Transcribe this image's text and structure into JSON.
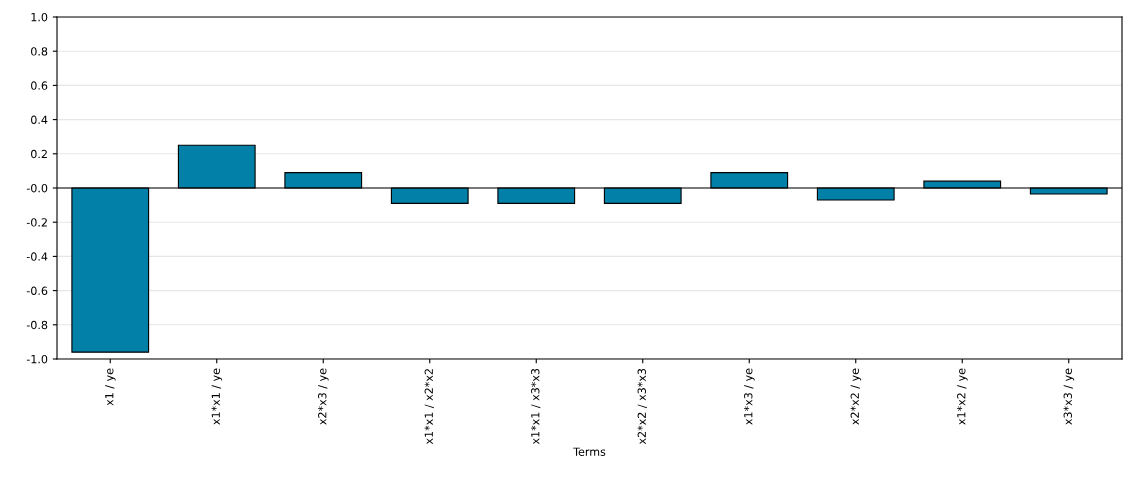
{
  "chart_data": {
    "type": "bar",
    "xlabel": "Terms",
    "categories": [
      "x1 / ye",
      "x1*x1 / ye",
      "x2*x3 / ye",
      "x1*x1 / x2*x2",
      "x1*x1 / x3*x3",
      "x2*x2 / x3*x3",
      "x1*x3 / ye",
      "x2*x2 / ye",
      "x1*x2 / ye",
      "x3*x3 / ye"
    ],
    "values": [
      -0.96,
      0.25,
      0.09,
      -0.09,
      -0.09,
      -0.09,
      0.09,
      -0.07,
      0.04,
      -0.035
    ],
    "color": "#0380a8",
    "ylim": [
      -1.0,
      1.0
    ],
    "yticks": [
      {
        "value": -1.0,
        "label": "-1.0"
      },
      {
        "value": -0.8,
        "label": "-0.8"
      },
      {
        "value": -0.6,
        "label": "-0.6"
      },
      {
        "value": -0.4,
        "label": "-0.4"
      },
      {
        "value": -0.2,
        "label": "-0.2"
      },
      {
        "value": 0.0,
        "label": "-0.0"
      },
      {
        "value": 0.2,
        "label": "0.2"
      },
      {
        "value": 0.4,
        "label": "0.4"
      },
      {
        "value": 0.6,
        "label": "0.6"
      },
      {
        "value": 0.8,
        "label": "0.8"
      },
      {
        "value": 1.0,
        "label": "1.0"
      }
    ],
    "grid": "y"
  }
}
